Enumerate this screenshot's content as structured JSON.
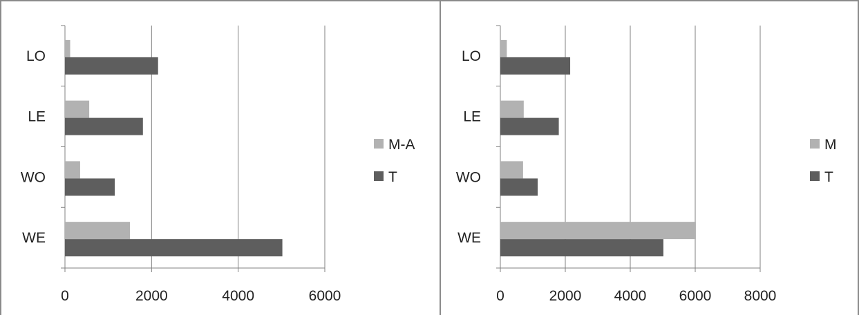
{
  "colors": {
    "light_series": "#b2b2b2",
    "dark_series": "#5e5e5e",
    "grid": "#808080",
    "axis": "#808080"
  },
  "chart_data": [
    {
      "type": "bar",
      "orientation": "horizontal",
      "categories": [
        "LO",
        "LE",
        "WO",
        "WE"
      ],
      "series": [
        {
          "name": "M-A",
          "color": "#b2b2b2",
          "values": [
            120,
            560,
            350,
            1500
          ]
        },
        {
          "name": "T",
          "color": "#5e5e5e",
          "values": [
            2150,
            1800,
            1150,
            5020
          ]
        }
      ],
      "xlim": [
        0,
        6000
      ],
      "ticks": [
        "0",
        "2000",
        "4000",
        "6000"
      ],
      "grid": "vertical",
      "legend": "right"
    },
    {
      "type": "bar",
      "orientation": "horizontal",
      "categories": [
        "LO",
        "LE",
        "WO",
        "WE"
      ],
      "series": [
        {
          "name": "M",
          "color": "#b2b2b2",
          "values": [
            200,
            720,
            700,
            6020
          ]
        },
        {
          "name": "T",
          "color": "#5e5e5e",
          "values": [
            2150,
            1800,
            1150,
            5020
          ]
        }
      ],
      "xlim": [
        0,
        8000
      ],
      "ticks": [
        "0",
        "2000",
        "4000",
        "6000",
        "8000"
      ],
      "grid": "vertical",
      "legend": "right"
    }
  ]
}
